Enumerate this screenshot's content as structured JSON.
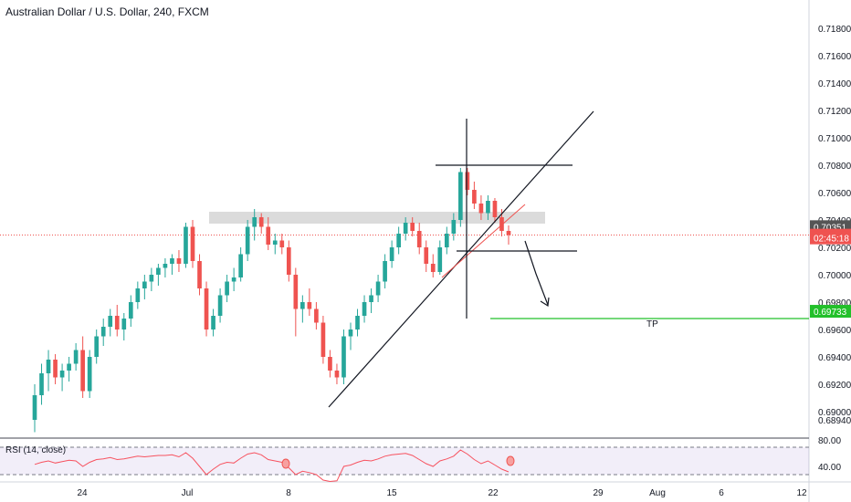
{
  "header": {
    "title": "Australian Dollar / U.S. Dollar, 240, FXCM"
  },
  "rsi_panel": {
    "label": "RSI (14, close)",
    "upper_label": "80.00",
    "lower_label": "40.00",
    "upper_level": 80,
    "lower_level": 40
  },
  "price_tags": [
    {
      "text": "0.70351",
      "value": 0.70351,
      "color": "#555555"
    },
    {
      "text": "0.70289",
      "value": 0.70289,
      "color": "#ef5350"
    },
    {
      "text": "02:45:18",
      "value": 0.70269,
      "color": "#ef5350"
    },
    {
      "text": "0.69733",
      "value": 0.69733,
      "color": "#22c02a"
    }
  ],
  "annotations": {
    "tp_label": "TP"
  },
  "chart_data": {
    "type": "candlestick",
    "title": "Australian Dollar / U.S. Dollar, 240, FXCM",
    "y_ticks": [
      "0.71800",
      "0.71600",
      "0.71400",
      "0.71200",
      "0.71000",
      "0.70800",
      "0.70600",
      "0.70400",
      "0.70200",
      "0.70000",
      "0.69800",
      "0.69600",
      "0.69400",
      "0.69200",
      "0.69000",
      "0.68940"
    ],
    "x_ticks": [
      "24",
      "Jul",
      "8",
      "15",
      "22",
      "29",
      "Aug",
      "6",
      "12"
    ],
    "ylim": [
      0.6894,
      0.719
    ],
    "grid": false,
    "candles": [
      [
        0.6894,
        0.692,
        0.6885,
        0.6912
      ],
      [
        0.6912,
        0.6935,
        0.6905,
        0.6928
      ],
      [
        0.6928,
        0.6945,
        0.6915,
        0.6938
      ],
      [
        0.6938,
        0.6942,
        0.692,
        0.6925
      ],
      [
        0.6925,
        0.6935,
        0.6915,
        0.693
      ],
      [
        0.693,
        0.694,
        0.6922,
        0.6935
      ],
      [
        0.6935,
        0.695,
        0.693,
        0.6945
      ],
      [
        0.6945,
        0.6955,
        0.691,
        0.6915
      ],
      [
        0.6915,
        0.6945,
        0.691,
        0.694
      ],
      [
        0.694,
        0.696,
        0.6935,
        0.6955
      ],
      [
        0.6955,
        0.6968,
        0.6948,
        0.6962
      ],
      [
        0.6962,
        0.6975,
        0.6955,
        0.697
      ],
      [
        0.697,
        0.6978,
        0.6955,
        0.696
      ],
      [
        0.696,
        0.6972,
        0.6952,
        0.6968
      ],
      [
        0.6968,
        0.6985,
        0.6962,
        0.698
      ],
      [
        0.698,
        0.6995,
        0.6975,
        0.699
      ],
      [
        0.699,
        0.7,
        0.6982,
        0.6995
      ],
      [
        0.6995,
        0.7005,
        0.6988,
        0.7
      ],
      [
        0.7,
        0.7008,
        0.6992,
        0.7005
      ],
      [
        0.7005,
        0.7012,
        0.6998,
        0.7008
      ],
      [
        0.7008,
        0.7015,
        0.7,
        0.7012
      ],
      [
        0.7012,
        0.7018,
        0.7002,
        0.7008
      ],
      [
        0.7008,
        0.7038,
        0.7005,
        0.7035
      ],
      [
        0.7035,
        0.704,
        0.7005,
        0.701
      ],
      [
        0.701,
        0.7015,
        0.6985,
        0.699
      ],
      [
        0.699,
        0.6995,
        0.6955,
        0.696
      ],
      [
        0.696,
        0.6975,
        0.6955,
        0.697
      ],
      [
        0.697,
        0.699,
        0.6965,
        0.6985
      ],
      [
        0.6985,
        0.7,
        0.698,
        0.6995
      ],
      [
        0.6995,
        0.7005,
        0.6988,
        0.6998
      ],
      [
        0.6998,
        0.702,
        0.6995,
        0.7015
      ],
      [
        0.7015,
        0.704,
        0.701,
        0.7035
      ],
      [
        0.7035,
        0.7048,
        0.7025,
        0.7042
      ],
      [
        0.7042,
        0.7045,
        0.703,
        0.7035
      ],
      [
        0.7035,
        0.7042,
        0.7018,
        0.7022
      ],
      [
        0.7022,
        0.703,
        0.7015,
        0.7025
      ],
      [
        0.7025,
        0.703,
        0.7015,
        0.702
      ],
      [
        0.702,
        0.7025,
        0.6995,
        0.7
      ],
      [
        0.7,
        0.7005,
        0.6955,
        0.6975
      ],
      [
        0.6975,
        0.6985,
        0.6965,
        0.698
      ],
      [
        0.698,
        0.699,
        0.697,
        0.6975
      ],
      [
        0.6975,
        0.698,
        0.696,
        0.6965
      ],
      [
        0.6965,
        0.697,
        0.6935,
        0.694
      ],
      [
        0.694,
        0.6945,
        0.6925,
        0.693
      ],
      [
        0.693,
        0.6935,
        0.692,
        0.6925
      ],
      [
        0.6925,
        0.696,
        0.692,
        0.6955
      ],
      [
        0.6955,
        0.6965,
        0.6945,
        0.696
      ],
      [
        0.696,
        0.6975,
        0.6955,
        0.697
      ],
      [
        0.697,
        0.6985,
        0.6965,
        0.698
      ],
      [
        0.698,
        0.699,
        0.6972,
        0.6985
      ],
      [
        0.6985,
        0.7,
        0.698,
        0.6995
      ],
      [
        0.6995,
        0.7015,
        0.699,
        0.701
      ],
      [
        0.701,
        0.7025,
        0.7005,
        0.702
      ],
      [
        0.702,
        0.7035,
        0.7015,
        0.703
      ],
      [
        0.703,
        0.7042,
        0.7025,
        0.7038
      ],
      [
        0.7038,
        0.7042,
        0.7028,
        0.7032
      ],
      [
        0.7032,
        0.7038,
        0.7015,
        0.702
      ],
      [
        0.702,
        0.7025,
        0.7002,
        0.7008
      ],
      [
        0.7008,
        0.7015,
        0.6998,
        0.7002
      ],
      [
        0.7002,
        0.7025,
        0.7,
        0.702
      ],
      [
        0.702,
        0.7035,
        0.7015,
        0.703
      ],
      [
        0.703,
        0.7045,
        0.7025,
        0.704
      ],
      [
        0.704,
        0.7078,
        0.7035,
        0.7075
      ],
      [
        0.7075,
        0.7078,
        0.7058,
        0.7062
      ],
      [
        0.7062,
        0.7068,
        0.7048,
        0.7052
      ],
      [
        0.7052,
        0.7058,
        0.704,
        0.7045
      ],
      [
        0.7045,
        0.7058,
        0.704,
        0.7054
      ],
      [
        0.7054,
        0.7056,
        0.7038,
        0.7042
      ],
      [
        0.7042,
        0.7048,
        0.7028,
        0.7032
      ],
      [
        0.7032,
        0.7036,
        0.7022,
        0.7029
      ]
    ],
    "rsi": [
      55,
      58,
      60,
      57,
      59,
      61,
      60,
      52,
      58,
      62,
      63,
      65,
      62,
      63,
      65,
      67,
      66,
      67,
      68,
      68,
      69,
      66,
      72,
      64,
      52,
      40,
      48,
      55,
      58,
      57,
      64,
      70,
      72,
      69,
      62,
      60,
      58,
      50,
      40,
      45,
      43,
      40,
      32,
      30,
      31,
      52,
      54,
      58,
      61,
      60,
      63,
      67,
      69,
      70,
      71,
      68,
      62,
      56,
      52,
      60,
      63,
      67,
      76,
      70,
      62,
      56,
      60,
      54,
      48,
      44
    ]
  }
}
